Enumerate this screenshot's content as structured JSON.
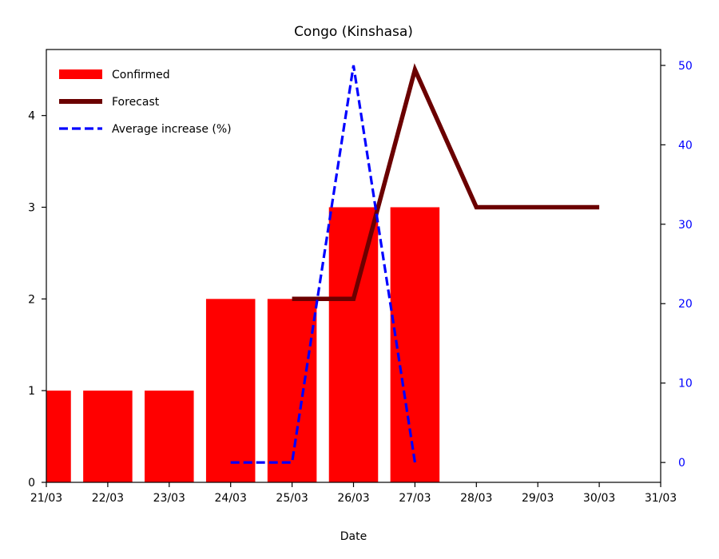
{
  "chart_data": {
    "type": "bar",
    "title": "Congo (Kinshasa)",
    "xlabel": "Date",
    "ylabel": "",
    "ylabel_right": "",
    "x_ticks": [
      "21/03",
      "22/03",
      "23/03",
      "24/03",
      "25/03",
      "26/03",
      "27/03",
      "28/03",
      "29/03",
      "30/03",
      "31/03"
    ],
    "xlim": [
      "21/03",
      "31/03"
    ],
    "ylim": [
      0,
      4.72
    ],
    "y_ticks": [
      0,
      1,
      2,
      3,
      4
    ],
    "ylim_right": [
      -2.5,
      52.0
    ],
    "y_ticks_right": [
      0,
      10,
      20,
      30,
      40,
      50
    ],
    "grid": false,
    "legend_position": "top-left",
    "series": [
      {
        "name": "Confirmed",
        "kind": "bar",
        "axis": "left",
        "color": "#ff0000",
        "x": [
          "21/03",
          "22/03",
          "23/03",
          "24/03",
          "25/03",
          "26/03",
          "27/03"
        ],
        "values": [
          1,
          1,
          1,
          2,
          2,
          3,
          3
        ]
      },
      {
        "name": "Forecast",
        "kind": "line",
        "axis": "left",
        "color": "#6b0000",
        "x": [
          "25/03",
          "26/03",
          "27/03",
          "28/03",
          "29/03",
          "30/03"
        ],
        "values": [
          2,
          2,
          4.5,
          3,
          3,
          3
        ]
      },
      {
        "name": "Average increase (%)",
        "kind": "dashed-line",
        "axis": "right",
        "color": "#0000ff",
        "x": [
          "24/03",
          "25/03",
          "26/03",
          "27/03"
        ],
        "values": [
          0,
          0,
          50,
          0
        ]
      }
    ]
  }
}
